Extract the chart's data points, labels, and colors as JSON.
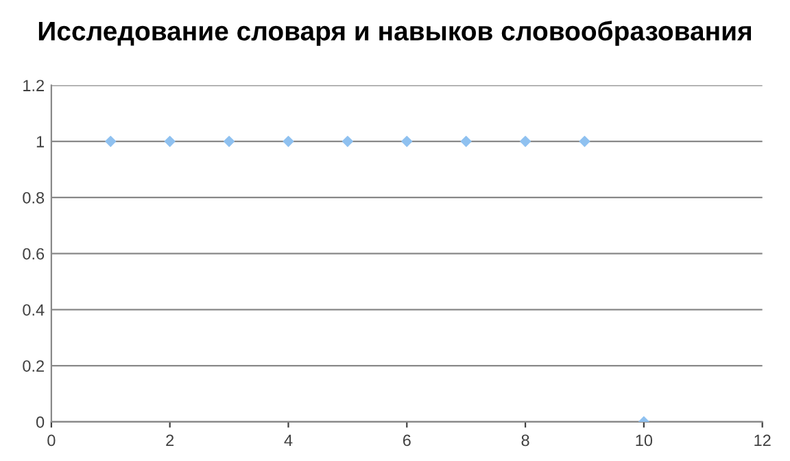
{
  "chart_data": {
    "type": "scatter",
    "title": "Исследование словаря и навыков словообразования",
    "x": [
      1,
      2,
      3,
      4,
      5,
      6,
      7,
      8,
      9,
      10
    ],
    "series": [
      {
        "color": "#8fc1f0",
        "values": [
          1,
          1,
          1,
          1,
          1,
          1,
          1,
          1,
          1,
          0
        ]
      }
    ],
    "xlim": [
      0,
      12
    ],
    "xticks": [
      0,
      2,
      4,
      6,
      8,
      10,
      12
    ],
    "ylim": [
      0,
      1.2
    ],
    "yticks": [
      0,
      0.2,
      0.4,
      0.6,
      0.8,
      1,
      1.2
    ],
    "grid": "y",
    "marker": "diamond"
  }
}
